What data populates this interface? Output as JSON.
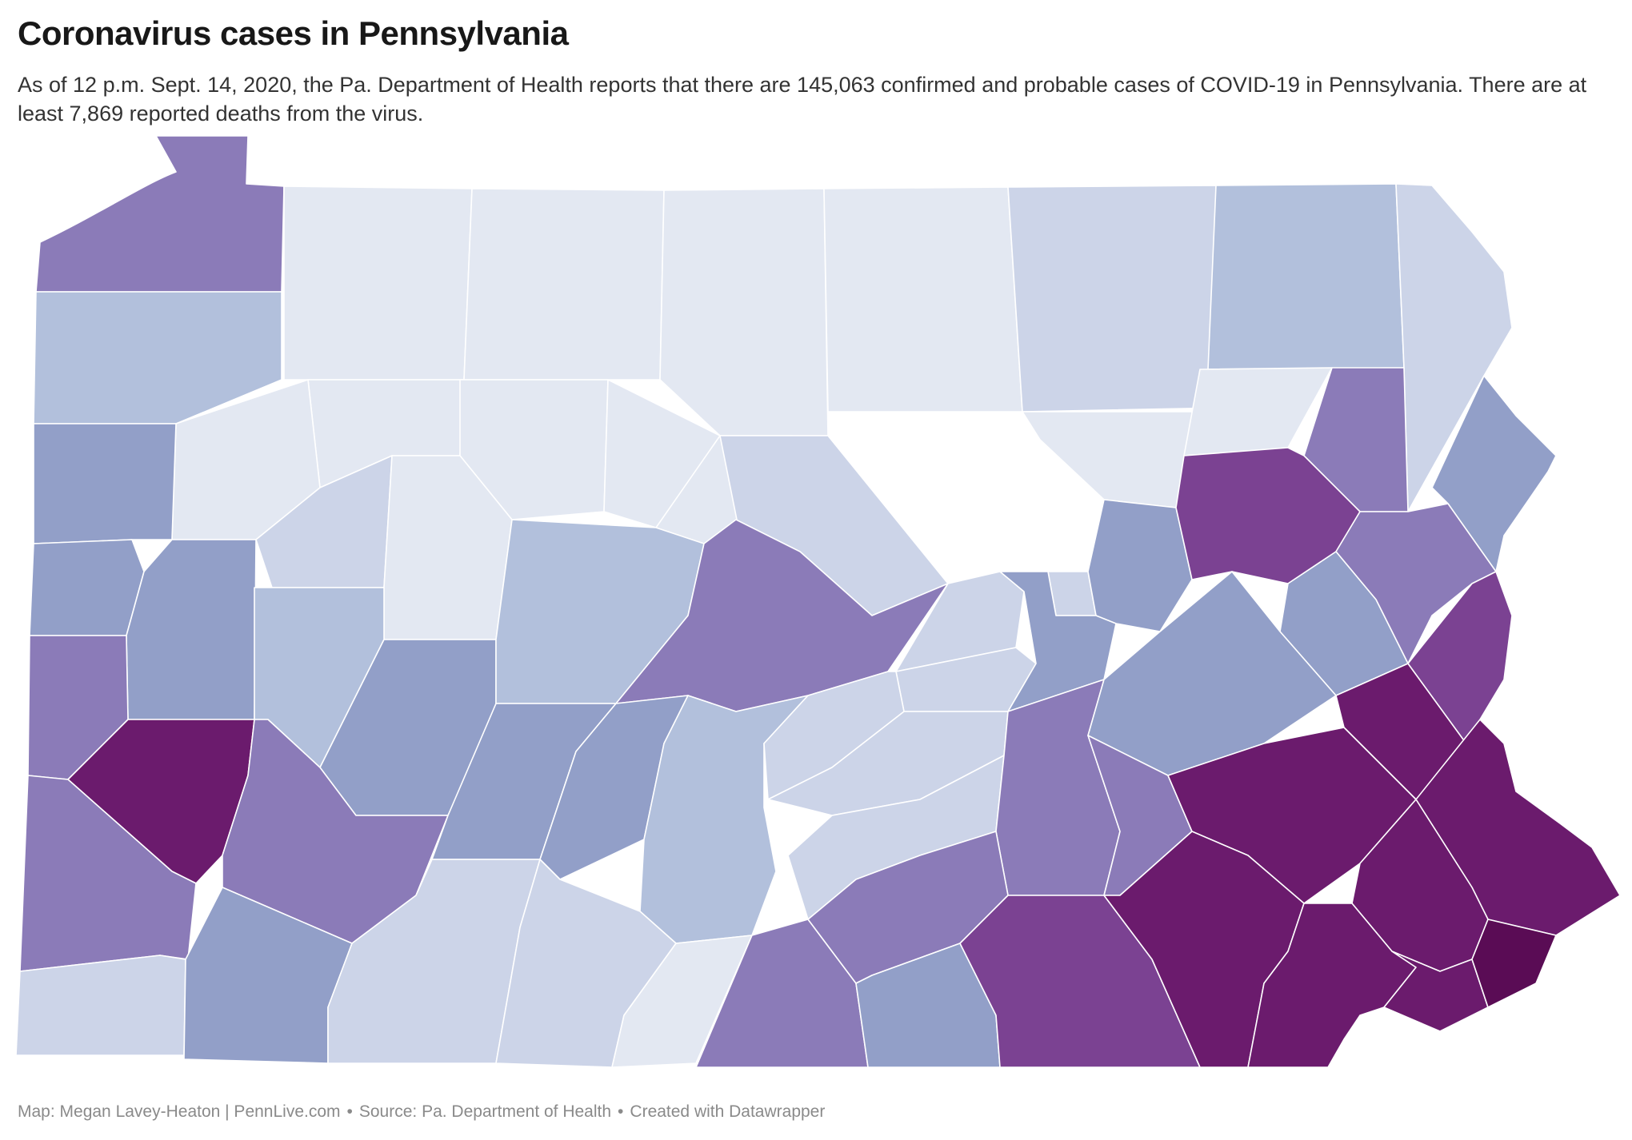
{
  "title": "Coronavirus cases in Pennsylvania",
  "description": "As of 12 p.m. Sept. 14, 2020, the Pa. Department of Health reports that there are 145,063 confirmed and probable cases of COVID-19 in Pennsylvania. There are at least 7,869 reported deaths from the virus.",
  "footer": {
    "credit": "Map: Megan Lavey-Heaton | PennLive.com",
    "source": "Source: Pa. Department of Health",
    "tool": "Created with Datawrapper",
    "separator": "•"
  },
  "map": {
    "region": "Pennsylvania",
    "color_scale": [
      "#e3e8f2",
      "#ccd4e8",
      "#b2c0dc",
      "#929fc8",
      "#8b7bb8",
      "#7b4292",
      "#6b1b6d",
      "#5a0c55"
    ],
    "border_color": "#ffffff",
    "counties": [
      {
        "name": "Erie",
        "level": 4
      },
      {
        "name": "Warren",
        "level": 0
      },
      {
        "name": "McKean",
        "level": 0
      },
      {
        "name": "Potter",
        "level": 0
      },
      {
        "name": "Tioga",
        "level": 0
      },
      {
        "name": "Bradford",
        "level": 1
      },
      {
        "name": "Susquehanna",
        "level": 2
      },
      {
        "name": "Wayne",
        "level": 1
      },
      {
        "name": "Crawford",
        "level": 2
      },
      {
        "name": "Forest",
        "level": 0
      },
      {
        "name": "Elk",
        "level": 0
      },
      {
        "name": "Cameron",
        "level": 0
      },
      {
        "name": "Clinton",
        "level": 0
      },
      {
        "name": "Lycoming",
        "level": 1
      },
      {
        "name": "Sullivan",
        "level": 0
      },
      {
        "name": "Wyoming",
        "level": 0
      },
      {
        "name": "Lackawanna",
        "level": 4
      },
      {
        "name": "Pike",
        "level": 3
      },
      {
        "name": "Mercer",
        "level": 3
      },
      {
        "name": "Venango",
        "level": 0
      },
      {
        "name": "Clarion",
        "level": 1
      },
      {
        "name": "Jefferson",
        "level": 0
      },
      {
        "name": "Clearfield",
        "level": 2
      },
      {
        "name": "Centre",
        "level": 4
      },
      {
        "name": "Union",
        "level": 1
      },
      {
        "name": "Snyder",
        "level": 1
      },
      {
        "name": "Columbia",
        "level": 3
      },
      {
        "name": "Montour",
        "level": 1
      },
      {
        "name": "Northumberland",
        "level": 3
      },
      {
        "name": "Luzerne",
        "level": 5
      },
      {
        "name": "Monroe",
        "level": 4
      },
      {
        "name": "Carbon",
        "level": 3
      },
      {
        "name": "Lawrence",
        "level": 3
      },
      {
        "name": "Butler",
        "level": 3
      },
      {
        "name": "Armstrong",
        "level": 2
      },
      {
        "name": "Indiana",
        "level": 3
      },
      {
        "name": "Cambria",
        "level": 3
      },
      {
        "name": "Blair",
        "level": 3
      },
      {
        "name": "Huntingdon",
        "level": 2
      },
      {
        "name": "Mifflin",
        "level": 1
      },
      {
        "name": "Juniata",
        "level": 1
      },
      {
        "name": "Perry",
        "level": 1
      },
      {
        "name": "Dauphin",
        "level": 4
      },
      {
        "name": "Schuylkill",
        "level": 3
      },
      {
        "name": "Lebanon",
        "level": 4
      },
      {
        "name": "Lehigh",
        "level": 6
      },
      {
        "name": "Northampton",
        "level": 5
      },
      {
        "name": "Berks",
        "level": 6
      },
      {
        "name": "Bucks",
        "level": 6
      },
      {
        "name": "Montgomery",
        "level": 6
      },
      {
        "name": "Beaver",
        "level": 4
      },
      {
        "name": "Allegheny",
        "level": 6
      },
      {
        "name": "Westmoreland",
        "level": 4
      },
      {
        "name": "Washington",
        "level": 4
      },
      {
        "name": "Greene",
        "level": 1
      },
      {
        "name": "Fayette",
        "level": 3
      },
      {
        "name": "Somerset",
        "level": 1
      },
      {
        "name": "Bedford",
        "level": 1
      },
      {
        "name": "Fulton",
        "level": 0
      },
      {
        "name": "Franklin",
        "level": 4
      },
      {
        "name": "Cumberland",
        "level": 4
      },
      {
        "name": "Adams",
        "level": 3
      },
      {
        "name": "York",
        "level": 5
      },
      {
        "name": "Lancaster",
        "level": 6
      },
      {
        "name": "Chester",
        "level": 6
      },
      {
        "name": "Delaware",
        "level": 6
      },
      {
        "name": "Philadelphia",
        "level": 7
      }
    ]
  }
}
